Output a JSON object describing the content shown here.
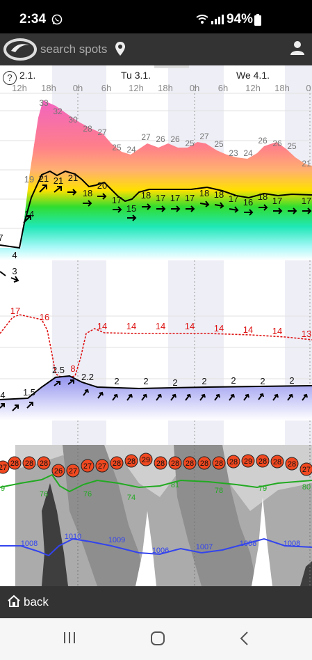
{
  "status_bar": {
    "time": "2:34",
    "battery": "94%"
  },
  "top_bar": {
    "search_placeholder": "search spots"
  },
  "help_label": "?",
  "days": [
    {
      "label": "2.1."
    },
    {
      "label": "Tu 3.1."
    },
    {
      "label": "We 4.1."
    }
  ],
  "hours": [
    "12h",
    "18h",
    "0h",
    "6h",
    "12h",
    "18h",
    "0h",
    "6h",
    "12h",
    "18h",
    "0"
  ],
  "wind_gusts": [
    "33",
    "32",
    "30",
    "28",
    "27",
    "25",
    "24",
    "27",
    "26",
    "26",
    "25",
    "27",
    "25",
    "23",
    "24",
    "26",
    "26",
    "25",
    "21"
  ],
  "wind_speed": [
    "7",
    "4",
    "3",
    "19",
    "14",
    "21",
    "21",
    "21",
    "18",
    "20",
    "17",
    "15",
    "18",
    "17",
    "17",
    "17",
    "18",
    "18",
    "17",
    "16",
    "18",
    "17",
    "17"
  ],
  "wave_period": [
    "17",
    "16",
    "14",
    "14",
    "14",
    "14",
    "14",
    "14",
    "14",
    "13"
  ],
  "wave_height": [
    "4",
    "1.5",
    "2.5",
    "2.2",
    "2",
    "2",
    "2",
    "2",
    "2",
    "2",
    "2"
  ],
  "wave_red": "8",
  "temperature": [
    "27",
    "28",
    "28",
    "28",
    "26",
    "27",
    "27",
    "27",
    "28",
    "28",
    "29",
    "28",
    "28",
    "28",
    "28",
    "28",
    "28",
    "29",
    "28",
    "28",
    "28",
    "27"
  ],
  "humidity": [
    "9",
    "76",
    "76",
    "74",
    "81",
    "78",
    "79",
    "80"
  ],
  "pressure": [
    "1008",
    "1010",
    "1009",
    "1006",
    "1007",
    "1008",
    "1008"
  ],
  "bottom_bar": {
    "back_label": "back"
  },
  "colors": {
    "accent": "#ff4a00",
    "humidity": "#22aa22",
    "pressure": "#3344ee",
    "wave_period": "#dd1111"
  }
}
